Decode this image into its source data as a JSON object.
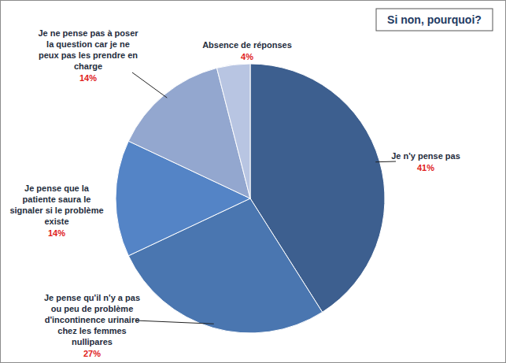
{
  "chart_data": {
    "type": "pie",
    "title": "Si non, pourquoi?",
    "categories": [
      "Je n'y pense pas",
      "Je pense qu'il n'y a pas ou peu de problème d'incontinence urinaire chez les femmes nullipares",
      "Je pense que la patiente saura le signaler si le problème existe",
      "Je ne pense pas à poser la question car je ne peux pas les prendre en charge",
      "Absence de réponses"
    ],
    "values": [
      41,
      27,
      14,
      14,
      4
    ],
    "value_labels": [
      "41%",
      "27%",
      "14%",
      "14%",
      "4%"
    ],
    "colors": [
      "#3d5f8f",
      "#4a76b0",
      "#5484c6",
      "#93a7cf",
      "#b8c5e2"
    ],
    "data_labels": true
  }
}
